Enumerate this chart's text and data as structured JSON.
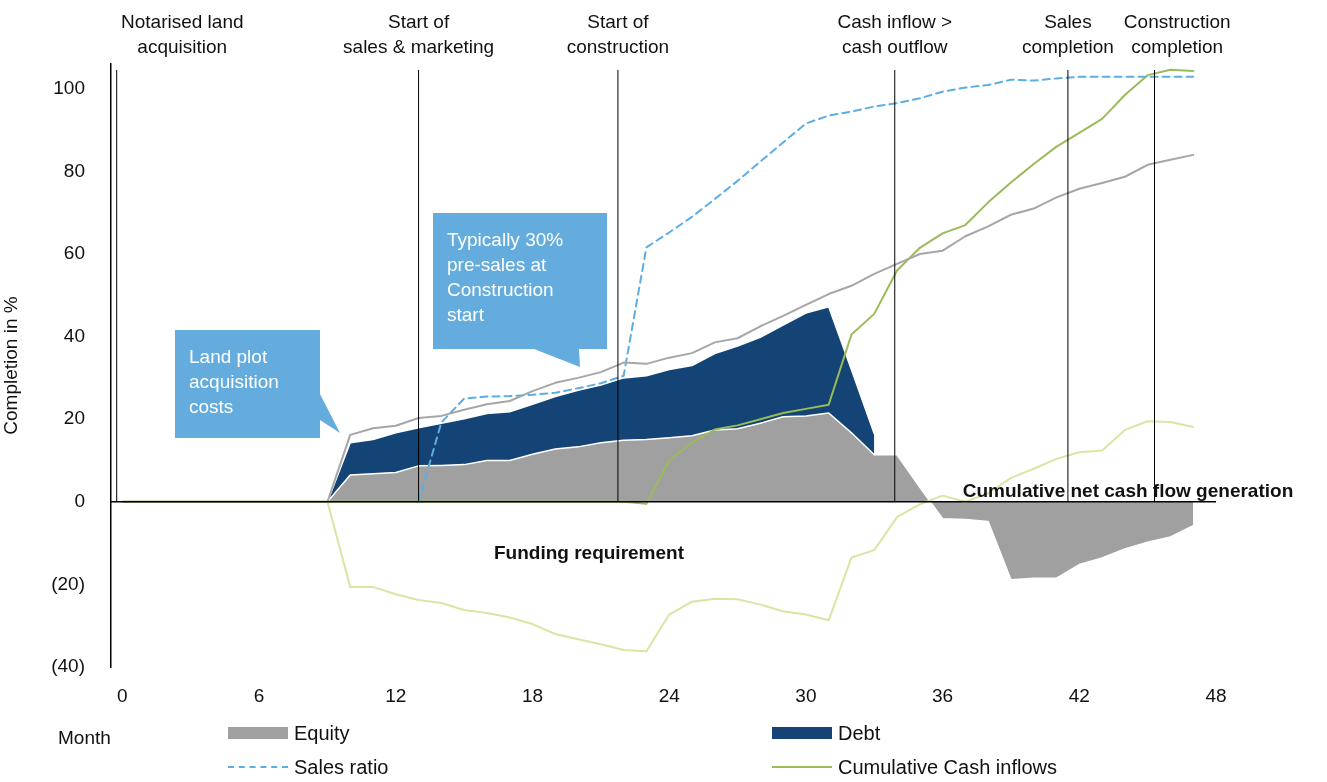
{
  "chart_data": {
    "type": "area",
    "ylabel": "Completion in %",
    "xlabel": "Month",
    "x": [
      0,
      1,
      2,
      3,
      4,
      5,
      6,
      7,
      8,
      9,
      10,
      11,
      12,
      13,
      14,
      15,
      16,
      17,
      18,
      19,
      20,
      21,
      22,
      23,
      24,
      25,
      26,
      27,
      28,
      29,
      30,
      31,
      32,
      33,
      34,
      35,
      36,
      37,
      38,
      39,
      40,
      41,
      42,
      43,
      44,
      45,
      46,
      47
    ],
    "xlim": [
      -0.5,
      48
    ],
    "xticks": [
      0,
      6,
      12,
      18,
      24,
      30,
      36,
      42,
      48
    ],
    "ylim": [
      -40,
      106
    ],
    "yticks": [
      {
        "value": -40,
        "label": "(40)"
      },
      {
        "value": -20,
        "label": "(20)"
      },
      0,
      20,
      40,
      60,
      80,
      100
    ],
    "stacked": true,
    "marker": "none",
    "legend": "bottom",
    "series": [
      {
        "name": "Equity",
        "color": "#a0a0a0",
        "values": [
          0,
          0,
          0,
          0,
          0,
          0,
          0,
          0,
          0,
          0,
          6.5,
          6.8,
          7.1,
          8.7,
          8.8,
          9,
          10,
          10,
          11.5,
          12.8,
          13.3,
          14.3,
          14.9,
          15.1,
          15.5,
          16,
          17.4,
          17.7,
          19,
          20.6,
          20.8,
          21.5,
          16.7,
          11.4,
          11.4,
          3.5,
          -4.1,
          -4.3,
          -4.8,
          -18.9,
          -18.5,
          -18.5,
          -15.2,
          -13.6,
          -11.4,
          -9.8,
          -8.5,
          -5.8
        ]
      },
      {
        "name": "Debt",
        "color": "#134475",
        "values": [
          0,
          0,
          0,
          0,
          0,
          0,
          0,
          0,
          0,
          0,
          7.8,
          8.3,
          9.6,
          9.2,
          10.2,
          11.1,
          11.4,
          11.8,
          12.1,
          12.7,
          13.7,
          14,
          15.1,
          15.4,
          16.5,
          17,
          18.5,
          20,
          20.8,
          22.2,
          24.9,
          25.7,
          15.3,
          5.1,
          null,
          null,
          null,
          null,
          null,
          null,
          null,
          null,
          null,
          null,
          null,
          null,
          null,
          null
        ]
      },
      {
        "type": "line",
        "color": "#a6a6a6",
        "values": [
          0,
          0,
          0,
          0,
          0,
          0,
          0,
          0,
          0,
          0,
          16.2,
          17.8,
          18.4,
          20.3,
          20.8,
          22.3,
          23.6,
          24.4,
          26.8,
          28.8,
          30,
          31.4,
          33.7,
          33.4,
          34.9,
          36,
          38.6,
          39.6,
          42.5,
          45,
          47.7,
          50.3,
          52.3,
          55.2,
          57.6,
          60,
          60.8,
          64.3,
          66.7,
          69.5,
          71,
          73.7,
          75.8,
          77.2,
          78.7,
          81.6,
          82.8,
          84
        ]
      },
      {
        "type": "line",
        "color": "#d7e6a4",
        "values": [
          0,
          0,
          0,
          0,
          0,
          0,
          0,
          0,
          0,
          0,
          -20.6,
          -20.6,
          -22.4,
          -23.8,
          -24.5,
          -26.2,
          -26.9,
          -28,
          -29.6,
          -32,
          -33.3,
          -34.5,
          -35.9,
          -36.2,
          -27.3,
          -24.2,
          -23.5,
          -23.6,
          -24.9,
          -26.5,
          -27.3,
          -28.7,
          -13.5,
          -11.7,
          -3.7,
          -0.6,
          1.5,
          0,
          2,
          5.8,
          8,
          10.4,
          12,
          12.4,
          17.4,
          19.5,
          19.3,
          18.1
        ]
      },
      {
        "name": "Sales ratio",
        "type": "line",
        "line_style": "dashed",
        "color": "#5dade2",
        "values": [
          null,
          null,
          null,
          null,
          null,
          null,
          null,
          null,
          null,
          null,
          null,
          null,
          null,
          0,
          19.2,
          25,
          25.5,
          25.6,
          25.9,
          26.4,
          27.5,
          28.7,
          30.5,
          61.6,
          65.2,
          69,
          73.3,
          77.7,
          82.4,
          87,
          91.6,
          93.5,
          94.5,
          95.7,
          96.5,
          97.7,
          99.3,
          100.3,
          100.9,
          102.2,
          102,
          102.5,
          102.9,
          102.9,
          102.9,
          102.9,
          102.9,
          102.9
        ]
      },
      {
        "name": "Cumulative Cash inflows",
        "type": "line",
        "color": "#9bbb59",
        "values": [
          0,
          0,
          0,
          0,
          0,
          0,
          0,
          0,
          0,
          0,
          0,
          0,
          0,
          0,
          0,
          0,
          0,
          0,
          0,
          0,
          0,
          0,
          0,
          -0.5,
          10,
          14.3,
          17.5,
          18.5,
          20,
          21.5,
          22.5,
          23.5,
          40.5,
          45.5,
          56,
          61.5,
          65,
          67,
          72.5,
          77.3,
          81.8,
          86,
          89.3,
          92.7,
          98.5,
          103.3,
          104.6,
          104.3
        ]
      }
    ],
    "ref_lines": [
      {
        "axis": "x",
        "value": -0.25,
        "label": "Notarised land\nacquisition",
        "color": "#000000"
      },
      {
        "axis": "x",
        "value": 13,
        "label": "Start of\nsales & marketing",
        "color": "#000000"
      },
      {
        "axis": "x",
        "value": 21.75,
        "label": "Start of\nconstruction",
        "color": "#000000"
      },
      {
        "axis": "x",
        "value": 33.9,
        "label": "Cash inflow >\ncash outflow",
        "color": "#000000"
      },
      {
        "axis": "x",
        "value": 41.5,
        "label": "Sales\ncompletion",
        "color": "#000000"
      },
      {
        "axis": "x",
        "value": 45.3,
        "label": "Construction\ncompletion",
        "color": "#000000"
      }
    ],
    "annotations": [
      "Land plot acquisition costs",
      "Typically 30% pre-sales at Construction start",
      "Funding requirement",
      "Cumulative net cash flow generation"
    ]
  }
}
